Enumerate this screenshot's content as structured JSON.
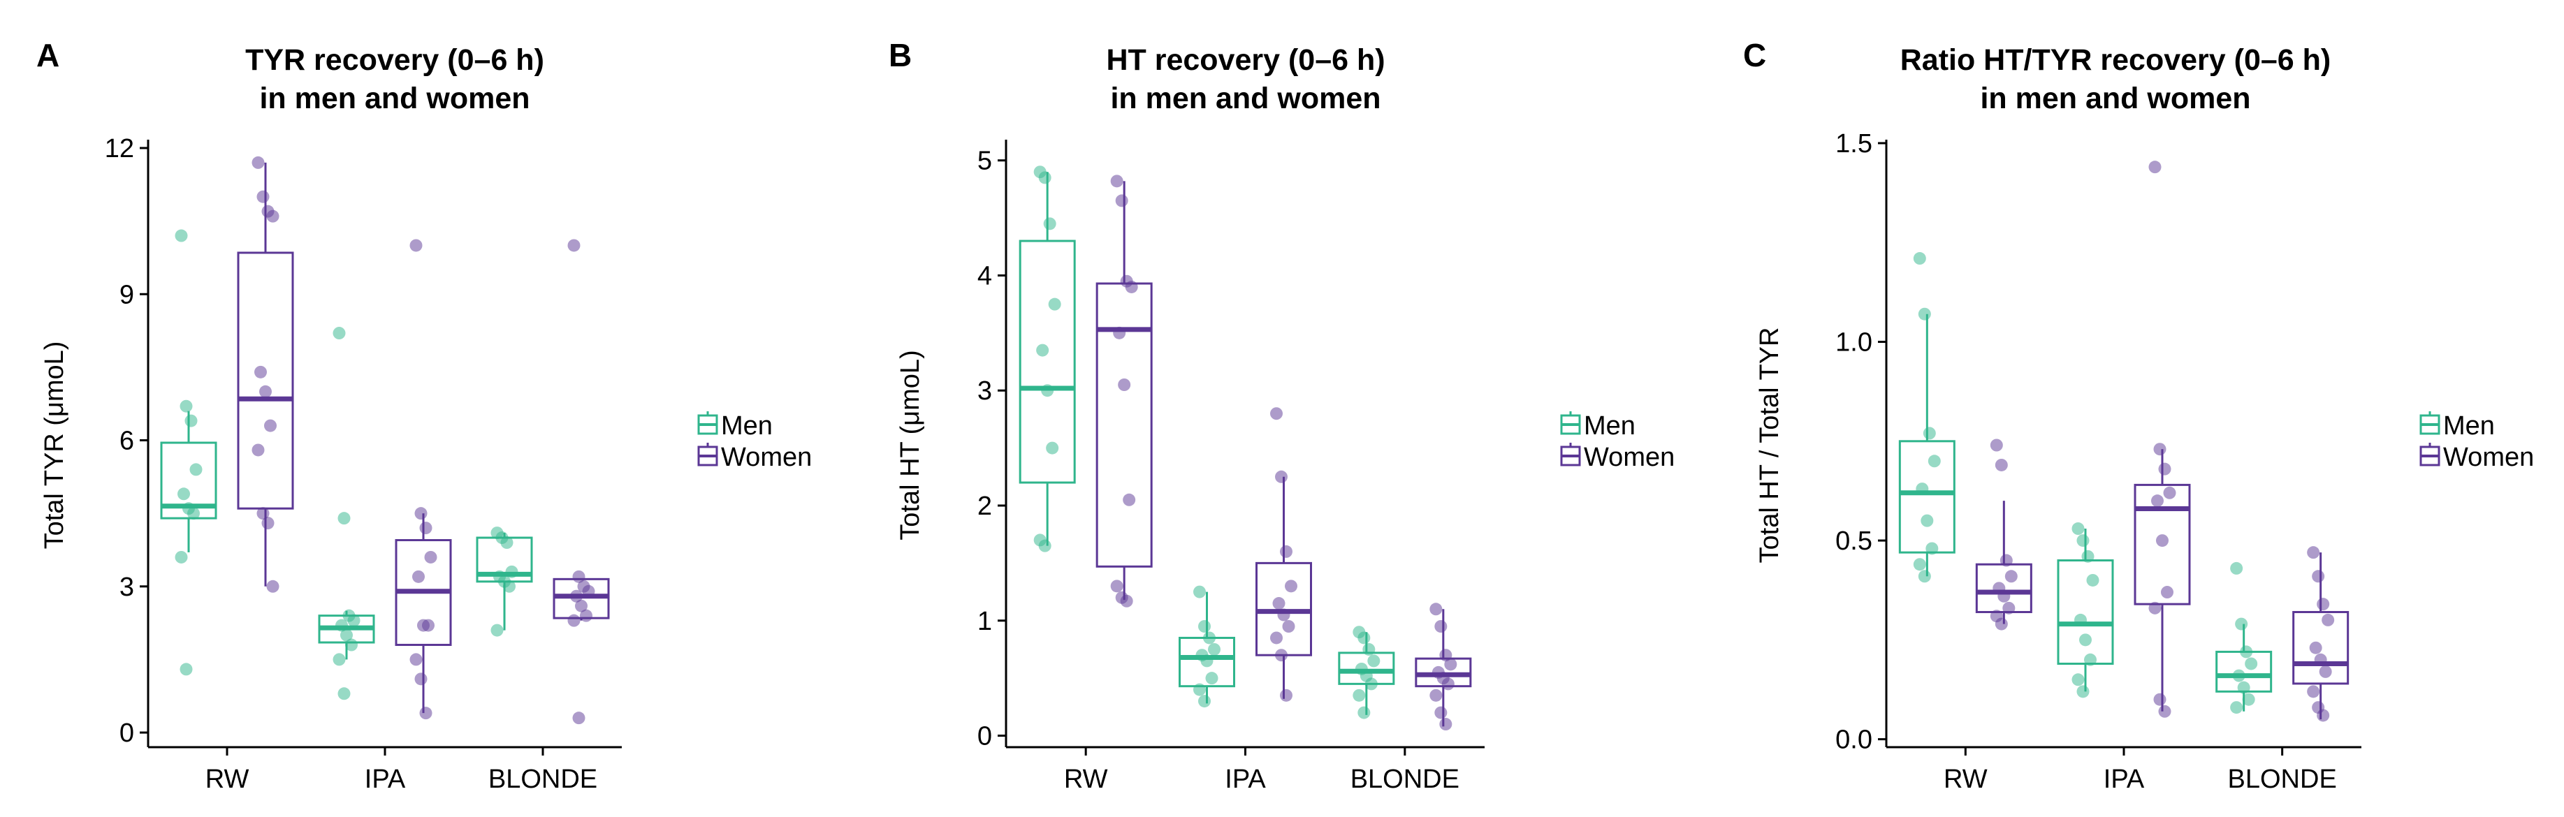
{
  "panels": [
    {
      "letter": "A"
    },
    {
      "letter": "B"
    },
    {
      "letter": "C"
    }
  ],
  "colors": {
    "Men": "#2fb58c",
    "Women": "#5b3795"
  },
  "chart_data": [
    {
      "type": "box",
      "title": [
        "TYR recovery (0–6 h)",
        "in men and women"
      ],
      "xlabel": "",
      "ylabel": "Total TYR (μmoL)",
      "categories": [
        "RW",
        "IPA",
        "BLONDE"
      ],
      "ylim": [
        -0.3,
        12.1
      ],
      "yticks": [
        0,
        3,
        6,
        9,
        12
      ],
      "legend": {
        "entries": [
          "Men",
          "Women"
        ],
        "position": "right"
      },
      "series": [
        {
          "name": "Men",
          "boxes": [
            {
              "q1": 4.4,
              "median": 4.65,
              "q3": 5.95,
              "whisker_low": 3.7,
              "whisker_high": 6.6,
              "points": [
                10.2,
                6.7,
                6.4,
                5.4,
                4.9,
                4.6,
                4.5,
                3.6,
                1.3
              ]
            },
            {
              "q1": 1.85,
              "median": 2.15,
              "q3": 2.4,
              "whisker_low": 1.5,
              "whisker_high": 2.5,
              "points": [
                8.2,
                4.4,
                2.4,
                2.3,
                2.2,
                2.0,
                1.8,
                1.5,
                0.8
              ]
            },
            {
              "q1": 3.1,
              "median": 3.25,
              "q3": 4.0,
              "whisker_low": 2.1,
              "whisker_high": 4.1,
              "points": [
                4.1,
                4.0,
                3.9,
                3.3,
                3.2,
                3.1,
                3.0,
                2.1
              ]
            }
          ]
        },
        {
          "name": "Women",
          "boxes": [
            {
              "q1": 4.6,
              "median": 6.85,
              "q3": 9.85,
              "whisker_low": 3.0,
              "whisker_high": 11.7,
              "points": [
                11.7,
                11.0,
                10.7,
                10.6,
                7.4,
                7.0,
                6.3,
                5.8,
                4.5,
                4.3,
                3.0
              ]
            },
            {
              "q1": 1.8,
              "median": 2.9,
              "q3": 3.95,
              "whisker_low": 0.4,
              "whisker_high": 4.5,
              "points": [
                10.0,
                4.5,
                4.2,
                3.6,
                3.2,
                2.2,
                2.2,
                1.5,
                1.1,
                0.4
              ]
            },
            {
              "q1": 2.35,
              "median": 2.8,
              "q3": 3.15,
              "whisker_low": 2.3,
              "whisker_high": 3.15,
              "points": [
                10.0,
                3.2,
                3.0,
                2.9,
                2.8,
                2.6,
                2.4,
                2.3,
                0.3
              ]
            }
          ]
        }
      ]
    },
    {
      "type": "box",
      "title": [
        "HT recovery (0–6 h)",
        "in men and women"
      ],
      "xlabel": "",
      "ylabel": "Total HT (μmoL)",
      "categories": [
        "RW",
        "IPA",
        "BLONDE"
      ],
      "ylim": [
        -0.1,
        5.15
      ],
      "yticks": [
        0,
        1,
        2,
        3,
        4,
        5
      ],
      "legend": {
        "entries": [
          "Men",
          "Women"
        ],
        "position": "right"
      },
      "series": [
        {
          "name": "Men",
          "boxes": [
            {
              "q1": 2.2,
              "median": 3.02,
              "q3": 4.3,
              "whisker_low": 1.65,
              "whisker_high": 4.9,
              "points": [
                4.9,
                4.85,
                4.45,
                3.75,
                3.35,
                3.0,
                2.5,
                1.7,
                1.65
              ]
            },
            {
              "q1": 0.43,
              "median": 0.68,
              "q3": 0.85,
              "whisker_low": 0.28,
              "whisker_high": 1.25,
              "points": [
                1.25,
                0.95,
                0.85,
                0.75,
                0.7,
                0.65,
                0.5,
                0.4,
                0.3
              ]
            },
            {
              "q1": 0.45,
              "median": 0.56,
              "q3": 0.72,
              "whisker_low": 0.18,
              "whisker_high": 0.9,
              "points": [
                0.9,
                0.85,
                0.75,
                0.65,
                0.58,
                0.52,
                0.45,
                0.35,
                0.2
              ]
            }
          ]
        },
        {
          "name": "Women",
          "boxes": [
            {
              "q1": 1.47,
              "median": 3.53,
              "q3": 3.93,
              "whisker_low": 1.18,
              "whisker_high": 4.82,
              "points": [
                4.82,
                4.65,
                3.95,
                3.9,
                3.5,
                3.05,
                2.05,
                1.3,
                1.2,
                1.17
              ]
            },
            {
              "q1": 0.7,
              "median": 1.08,
              "q3": 1.5,
              "whisker_low": 0.32,
              "whisker_high": 2.25,
              "points": [
                2.8,
                2.25,
                1.6,
                1.3,
                1.15,
                1.05,
                0.95,
                0.85,
                0.7,
                0.35
              ]
            },
            {
              "q1": 0.43,
              "median": 0.53,
              "q3": 0.67,
              "whisker_low": 0.08,
              "whisker_high": 1.1,
              "points": [
                1.1,
                0.95,
                0.7,
                0.62,
                0.55,
                0.5,
                0.45,
                0.35,
                0.2,
                0.1
              ]
            }
          ]
        }
      ]
    },
    {
      "type": "box",
      "title": [
        "Ratio HT/TYR recovery (0–6 h)",
        "in men and women"
      ],
      "xlabel": "",
      "ylabel": "Total HT / Total TYR",
      "categories": [
        "RW",
        "IPA",
        "BLONDE"
      ],
      "ylim": [
        -0.02,
        1.5
      ],
      "yticks": [
        0.0,
        0.5,
        1.0,
        1.5
      ],
      "ytick_labels": [
        "0.0",
        "0.5",
        "1.0",
        "1.5"
      ],
      "legend": {
        "entries": [
          "Men",
          "Women"
        ],
        "position": "right"
      },
      "series": [
        {
          "name": "Men",
          "boxes": [
            {
              "q1": 0.47,
              "median": 0.62,
              "q3": 0.75,
              "whisker_low": 0.41,
              "whisker_high": 1.07,
              "points": [
                1.21,
                1.07,
                0.77,
                0.7,
                0.63,
                0.55,
                0.48,
                0.44,
                0.41
              ]
            },
            {
              "q1": 0.19,
              "median": 0.29,
              "q3": 0.45,
              "whisker_low": 0.12,
              "whisker_high": 0.53,
              "points": [
                0.53,
                0.5,
                0.46,
                0.4,
                0.3,
                0.25,
                0.2,
                0.15,
                0.12
              ]
            },
            {
              "q1": 0.12,
              "median": 0.16,
              "q3": 0.22,
              "whisker_low": 0.07,
              "whisker_high": 0.29,
              "points": [
                0.43,
                0.29,
                0.22,
                0.19,
                0.16,
                0.13,
                0.1,
                0.08
              ]
            }
          ]
        },
        {
          "name": "Women",
          "boxes": [
            {
              "q1": 0.32,
              "median": 0.37,
              "q3": 0.44,
              "whisker_low": 0.29,
              "whisker_high": 0.6,
              "points": [
                0.74,
                0.69,
                0.45,
                0.41,
                0.38,
                0.36,
                0.33,
                0.31,
                0.29
              ]
            },
            {
              "q1": 0.34,
              "median": 0.58,
              "q3": 0.64,
              "whisker_low": 0.07,
              "whisker_high": 0.73,
              "points": [
                1.44,
                0.73,
                0.68,
                0.62,
                0.6,
                0.5,
                0.37,
                0.33,
                0.1,
                0.07
              ]
            },
            {
              "q1": 0.14,
              "median": 0.19,
              "q3": 0.32,
              "whisker_low": 0.05,
              "whisker_high": 0.47,
              "points": [
                0.47,
                0.41,
                0.34,
                0.3,
                0.23,
                0.2,
                0.17,
                0.12,
                0.08,
                0.06
              ]
            }
          ]
        }
      ]
    }
  ]
}
